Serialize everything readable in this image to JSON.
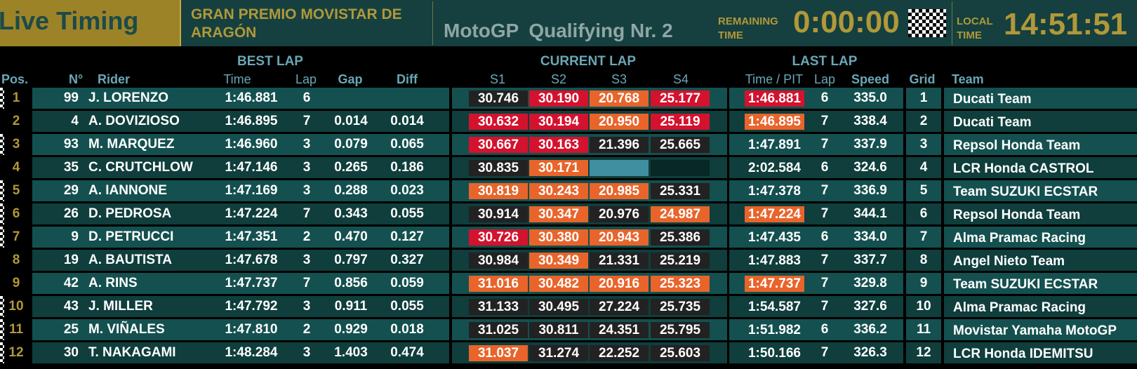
{
  "header": {
    "live_label": "Live Timing",
    "event_line1": "GRAN PREMIO MOVISTAR DE",
    "event_line2": "ARAGÓN",
    "series": "MotoGP",
    "session": "Qualifying Nr. 2",
    "remaining_label_1": "REMAINING",
    "remaining_label_2": "TIME",
    "remaining_value": "0:00:00",
    "local_label_1": "LOCAL",
    "local_label_2": "TIME",
    "local_value": "14:51:51",
    "flag_icon": "checkered-flag-icon"
  },
  "columns": {
    "groups": {
      "best_lap": "BEST LAP",
      "current_lap": "CURRENT LAP",
      "last_lap": "LAST LAP"
    },
    "pos": "Pos.",
    "number": "N°",
    "rider": "Rider",
    "time": "Time",
    "lap": "Lap",
    "gap": "Gap",
    "diff": "Diff",
    "s1": "S1",
    "s2": "S2",
    "s3": "S3",
    "s4": "S4",
    "last_time": "Time / PIT",
    "last_lap": "Lap",
    "speed": "Speed",
    "grid": "Grid",
    "team": "Team"
  },
  "colors": {
    "personal_best": "#e8642a",
    "overall_best": "#d4122e",
    "in_progress": "#3f8fa0",
    "standard": "#222222",
    "accent": "#b19839"
  },
  "rows": [
    {
      "pos": "1",
      "num": "99",
      "rider": "J. LORENZO",
      "time": "1:46.881",
      "lap": "6",
      "gap": "",
      "diff": "",
      "s1": "30.746",
      "s1c": "dark",
      "s2": "30.190",
      "s2c": "red",
      "s3": "20.768",
      "s3c": "orange",
      "s4": "25.177",
      "s4c": "red",
      "last": "1:46.881",
      "lastc": "red",
      "last_lap": "6",
      "speed": "335.0",
      "grid": "1",
      "team": "Ducati Team"
    },
    {
      "pos": "2",
      "num": "4",
      "rider": "A. DOVIZIOSO",
      "time": "1:46.895",
      "lap": "7",
      "gap": "0.014",
      "diff": "0.014",
      "s1": "30.632",
      "s1c": "red",
      "s2": "30.194",
      "s2c": "red",
      "s3": "20.950",
      "s3c": "orange",
      "s4": "25.119",
      "s4c": "red",
      "last": "1:46.895",
      "lastc": "orange",
      "last_lap": "7",
      "speed": "338.4",
      "grid": "2",
      "team": "Ducati Team"
    },
    {
      "pos": "3",
      "num": "93",
      "rider": "M. MARQUEZ",
      "time": "1:46.960",
      "lap": "3",
      "gap": "0.079",
      "diff": "0.065",
      "s1": "30.667",
      "s1c": "red",
      "s2": "30.163",
      "s2c": "red",
      "s3": "21.396",
      "s3c": "dark",
      "s4": "25.665",
      "s4c": "dark",
      "last": "1:47.891",
      "lastc": "",
      "last_lap": "7",
      "speed": "337.9",
      "grid": "3",
      "team": "Repsol Honda Team"
    },
    {
      "pos": "4",
      "num": "35",
      "rider": "C. CRUTCHLOW",
      "time": "1:47.146",
      "lap": "3",
      "gap": "0.265",
      "diff": "0.186",
      "s1": "30.835",
      "s1c": "dark",
      "s2": "30.171",
      "s2c": "orange",
      "s3": "",
      "s3c": "prog",
      "s4": "",
      "s4c": "empty",
      "last": "2:02.584",
      "lastc": "",
      "last_lap": "6",
      "speed": "324.6",
      "grid": "4",
      "team": "LCR Honda CASTROL"
    },
    {
      "pos": "5",
      "num": "29",
      "rider": "A. IANNONE",
      "time": "1:47.169",
      "lap": "3",
      "gap": "0.288",
      "diff": "0.023",
      "s1": "30.819",
      "s1c": "orange",
      "s2": "30.243",
      "s2c": "orange",
      "s3": "20.985",
      "s3c": "orange",
      "s4": "25.331",
      "s4c": "dark",
      "last": "1:47.378",
      "lastc": "",
      "last_lap": "7",
      "speed": "336.9",
      "grid": "5",
      "team": "Team SUZUKI ECSTAR"
    },
    {
      "pos": "6",
      "num": "26",
      "rider": "D. PEDROSA",
      "time": "1:47.224",
      "lap": "7",
      "gap": "0.343",
      "diff": "0.055",
      "s1": "30.914",
      "s1c": "dark",
      "s2": "30.347",
      "s2c": "orange",
      "s3": "20.976",
      "s3c": "dark",
      "s4": "24.987",
      "s4c": "orange",
      "last": "1:47.224",
      "lastc": "orange",
      "last_lap": "7",
      "speed": "344.1",
      "grid": "6",
      "team": "Repsol Honda Team"
    },
    {
      "pos": "7",
      "num": "9",
      "rider": "D. PETRUCCI",
      "time": "1:47.351",
      "lap": "2",
      "gap": "0.470",
      "diff": "0.127",
      "s1": "30.726",
      "s1c": "red",
      "s2": "30.380",
      "s2c": "orange",
      "s3": "20.943",
      "s3c": "orange",
      "s4": "25.386",
      "s4c": "dark",
      "last": "1:47.435",
      "lastc": "",
      "last_lap": "6",
      "speed": "334.0",
      "grid": "7",
      "team": "Alma Pramac Racing"
    },
    {
      "pos": "8",
      "num": "19",
      "rider": "A. BAUTISTA",
      "time": "1:47.678",
      "lap": "3",
      "gap": "0.797",
      "diff": "0.327",
      "s1": "30.984",
      "s1c": "dark",
      "s2": "30.349",
      "s2c": "orange",
      "s3": "21.331",
      "s3c": "dark",
      "s4": "25.219",
      "s4c": "dark",
      "last": "1:47.883",
      "lastc": "",
      "last_lap": "7",
      "speed": "337.7",
      "grid": "8",
      "team": "Angel Nieto Team"
    },
    {
      "pos": "9",
      "num": "42",
      "rider": "A. RINS",
      "time": "1:47.737",
      "lap": "7",
      "gap": "0.856",
      "diff": "0.059",
      "s1": "31.016",
      "s1c": "orange",
      "s2": "30.482",
      "s2c": "orange",
      "s3": "20.916",
      "s3c": "orange",
      "s4": "25.323",
      "s4c": "orange",
      "last": "1:47.737",
      "lastc": "orange",
      "last_lap": "7",
      "speed": "329.8",
      "grid": "9",
      "team": "Team SUZUKI ECSTAR"
    },
    {
      "pos": "10",
      "num": "43",
      "rider": "J. MILLER",
      "time": "1:47.792",
      "lap": "3",
      "gap": "0.911",
      "diff": "0.055",
      "s1": "31.133",
      "s1c": "dark",
      "s2": "30.495",
      "s2c": "dark",
      "s3": "27.224",
      "s3c": "dark",
      "s4": "25.735",
      "s4c": "dark",
      "last": "1:54.587",
      "lastc": "",
      "last_lap": "7",
      "speed": "327.6",
      "grid": "10",
      "team": "Alma Pramac Racing"
    },
    {
      "pos": "11",
      "num": "25",
      "rider": "M. VIÑALES",
      "time": "1:47.810",
      "lap": "2",
      "gap": "0.929",
      "diff": "0.018",
      "s1": "31.025",
      "s1c": "dark",
      "s2": "30.811",
      "s2c": "dark",
      "s3": "24.351",
      "s3c": "dark",
      "s4": "25.795",
      "s4c": "dark",
      "last": "1:51.982",
      "lastc": "",
      "last_lap": "6",
      "speed": "336.2",
      "grid": "11",
      "team": "Movistar Yamaha MotoGP"
    },
    {
      "pos": "12",
      "num": "30",
      "rider": "T. NAKAGAMI",
      "time": "1:48.284",
      "lap": "3",
      "gap": "1.403",
      "diff": "0.474",
      "s1": "31.037",
      "s1c": "orange",
      "s2": "31.274",
      "s2c": "dark",
      "s3": "22.252",
      "s3c": "dark",
      "s4": "25.603",
      "s4c": "dark",
      "last": "1:50.166",
      "lastc": "",
      "last_lap": "7",
      "speed": "326.3",
      "grid": "12",
      "team": "LCR Honda IDEMITSU"
    }
  ]
}
